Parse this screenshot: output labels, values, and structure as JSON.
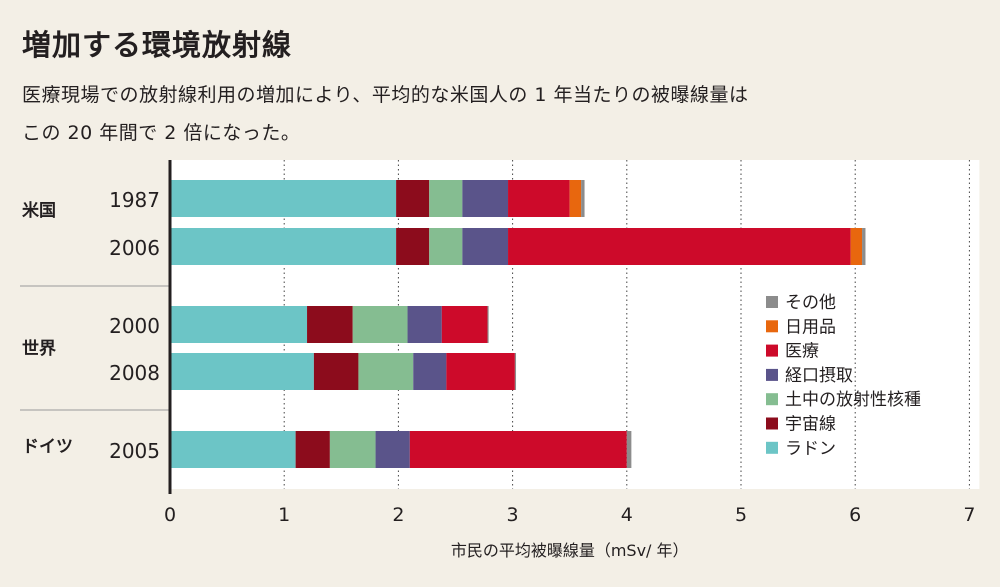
{
  "title": "増加する環境放射線",
  "subtitle_line1": "医療現場での放射線利用の増加により、平均的な米国人の 1 年当たりの被曝線量は",
  "subtitle_line2": "この 20 年間で 2 倍になった。",
  "colors": {
    "background": "#f3efe6",
    "plot_background": "#ffffff",
    "ラドン": "#6cc5c6",
    "宇宙線": "#8c0c1c",
    "土中の放射性核種": "#85bd91",
    "経口摂取": "#5a548a",
    "医療": "#cd0a2a",
    "日用品": "#e8670e",
    "その他": "#8c8c8c"
  },
  "chart_data": {
    "type": "bar",
    "orientation": "horizontal",
    "stacked": true,
    "xlabel": "市民の平均被曝線量（mSv/ 年）",
    "xlim": [
      0,
      7
    ],
    "xticks": [
      "0",
      "1",
      "2",
      "3",
      "4",
      "5",
      "6",
      "7"
    ],
    "grid": "vertical dotted",
    "legend_position": "right",
    "groups": [
      {
        "name": "米国",
        "rows": [
          "1987",
          "2006"
        ]
      },
      {
        "name": "世界",
        "rows": [
          "2000",
          "2008"
        ]
      },
      {
        "name": "ドイツ",
        "rows": [
          "2005"
        ]
      }
    ],
    "categories": [
      "1987",
      "2006",
      "2000",
      "2008",
      "2005"
    ],
    "legend_order": [
      "その他",
      "日用品",
      "医療",
      "経口摂取",
      "土中の放射性核種",
      "宇宙線",
      "ラドン"
    ],
    "series": [
      {
        "name": "ラドン",
        "values": [
          1.98,
          1.98,
          1.2,
          1.26,
          1.1
        ]
      },
      {
        "name": "宇宙線",
        "values": [
          0.29,
          0.29,
          0.4,
          0.39,
          0.3
        ]
      },
      {
        "name": "土中の放射性核種",
        "values": [
          0.29,
          0.29,
          0.48,
          0.48,
          0.4
        ]
      },
      {
        "name": "経口摂取",
        "values": [
          0.4,
          0.4,
          0.3,
          0.29,
          0.3
        ]
      },
      {
        "name": "医療",
        "values": [
          0.54,
          3.0,
          0.4,
          0.6,
          1.9
        ]
      },
      {
        "name": "日用品",
        "values": [
          0.1,
          0.1,
          0.0,
          0.0,
          0.0
        ]
      },
      {
        "name": "その他",
        "values": [
          0.03,
          0.03,
          0.01,
          0.01,
          0.04
        ]
      }
    ]
  }
}
